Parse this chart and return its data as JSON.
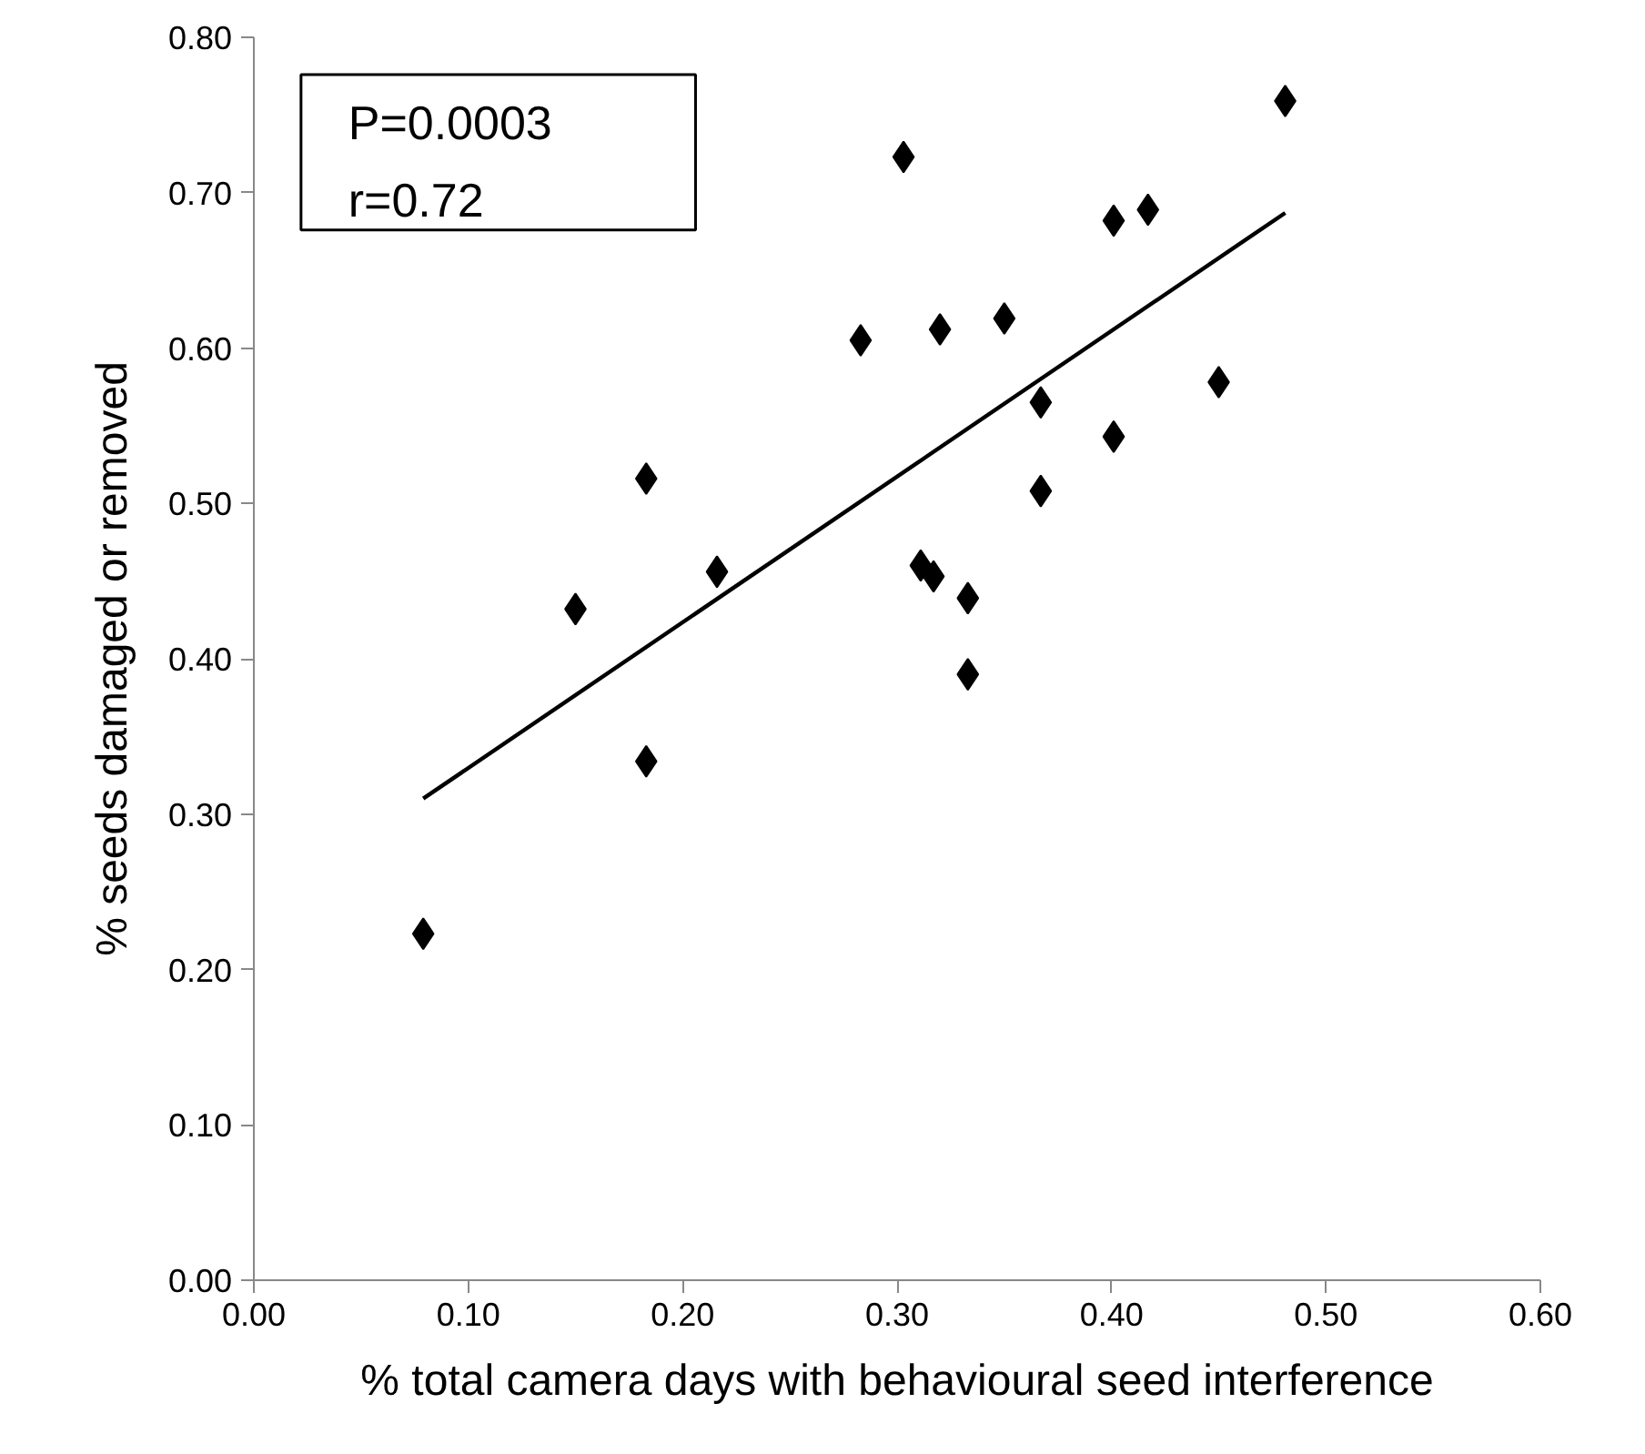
{
  "chart_data": {
    "type": "scatter",
    "xlabel": "% total camera days with behavioural seed interference",
    "ylabel": "% seeds damaged or removed",
    "annotations": [
      "P=0.0003",
      "r=0.72"
    ],
    "series": [
      {
        "color": "#000000",
        "marker": "diamond",
        "x": [
          0.079,
          0.15,
          0.183,
          0.183,
          0.216,
          0.283,
          0.303,
          0.32,
          0.35,
          0.401,
          0.417,
          0.481,
          0.367,
          0.45,
          0.401,
          0.367,
          0.311,
          0.317,
          0.333,
          0.333
        ],
        "values": [
          0.223,
          0.432,
          0.334,
          0.516,
          0.456,
          0.605,
          0.723,
          0.612,
          0.619,
          0.682,
          0.689,
          0.759,
          0.565,
          0.578,
          0.543,
          0.508,
          0.46,
          0.453,
          0.439,
          0.39
        ]
      },
      {
        "type": "line",
        "color": "#000000",
        "line_style": "solid",
        "x": [
          0.079,
          0.481
        ],
        "values": [
          0.31,
          0.687
        ]
      }
    ],
    "xlim": [
      0,
      0.6
    ],
    "ylim": [
      0,
      0.8
    ],
    "xticks": [
      {
        "value": 0,
        "label": "0.00"
      },
      {
        "value": 0.1,
        "label": "0.10"
      },
      {
        "value": 0.2,
        "label": "0.20"
      },
      {
        "value": 0.3,
        "label": "0.30"
      },
      {
        "value": 0.4,
        "label": "0.40"
      },
      {
        "value": 0.5,
        "label": "0.50"
      },
      {
        "value": 0.6,
        "label": "0.60"
      }
    ],
    "yticks": [
      {
        "value": 0,
        "label": "0.00"
      },
      {
        "value": 0.1,
        "label": "0.10"
      },
      {
        "value": 0.2,
        "label": "0.20"
      },
      {
        "value": 0.3,
        "label": "0.30"
      },
      {
        "value": 0.4,
        "label": "0.40"
      },
      {
        "value": 0.5,
        "label": "0.50"
      },
      {
        "value": 0.6,
        "label": "0.60"
      },
      {
        "value": 0.7,
        "label": "0.70"
      },
      {
        "value": 0.8,
        "label": "0.80"
      }
    ],
    "grid": false
  }
}
